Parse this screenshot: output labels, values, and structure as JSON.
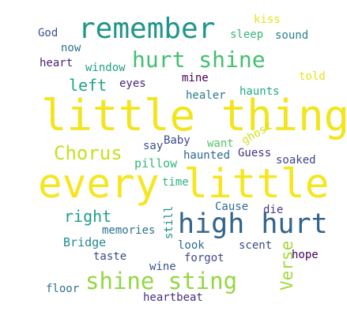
{
  "words": [
    {
      "text": "little thing",
      "color": "#f2e51d"
    },
    {
      "text": "every little",
      "color": "#f6e620"
    },
    {
      "text": "high hurt",
      "color": "#33638d"
    },
    {
      "text": "remember",
      "color": "#1f958b"
    },
    {
      "text": "shine sting",
      "color": "#93d741"
    },
    {
      "text": "hurt shine",
      "color": "#44bf70"
    },
    {
      "text": "Chorus",
      "color": "#c8e020"
    },
    {
      "text": "right",
      "color": "#1f9e89"
    },
    {
      "text": "left",
      "color": "#20a486"
    },
    {
      "text": "Verse",
      "color": "#a2da37"
    },
    {
      "text": "Bridge",
      "color": "#23888e"
    },
    {
      "text": "memories",
      "color": "#2c728e"
    },
    {
      "text": "pillow",
      "color": "#35b779"
    },
    {
      "text": "haunted",
      "color": "#31668e"
    },
    {
      "text": "heartbeat",
      "color": "#472f7d"
    },
    {
      "text": "forgot",
      "color": "#3e4a89"
    },
    {
      "text": "window",
      "color": "#1fa187"
    },
    {
      "text": "haunts",
      "color": "#22a884"
    },
    {
      "text": "healer",
      "color": "#2a788e"
    },
    {
      "text": "soaked",
      "color": "#414487"
    },
    {
      "text": "ghost",
      "color": "#d2e21b"
    },
    {
      "text": "Guess",
      "color": "#46307e"
    },
    {
      "text": "sound",
      "color": "#26818e"
    },
    {
      "text": "sleep",
      "color": "#35b779"
    },
    {
      "text": "kiss",
      "color": "#e5e419"
    },
    {
      "text": "God",
      "color": "#3b528b"
    },
    {
      "text": "now",
      "color": "#2c728e"
    },
    {
      "text": "heart",
      "color": "#482475"
    },
    {
      "text": "eyes",
      "color": "#482878"
    },
    {
      "text": "mine",
      "color": "#440154"
    },
    {
      "text": "told",
      "color": "#e3e418"
    },
    {
      "text": "Baby",
      "color": "#3e4a89"
    },
    {
      "text": "want",
      "color": "#54c568"
    },
    {
      "text": "say",
      "color": "#3b528b"
    },
    {
      "text": "time",
      "color": "#2fb47c"
    },
    {
      "text": "Cause",
      "color": "#31688e"
    },
    {
      "text": "die",
      "color": "#443983"
    },
    {
      "text": "still",
      "color": "#228c8d"
    },
    {
      "text": "look",
      "color": "#31688e"
    },
    {
      "text": "scent",
      "color": "#3e4989"
    },
    {
      "text": "hope",
      "color": "#440154"
    },
    {
      "text": "taste",
      "color": "#3e4989"
    },
    {
      "text": "wine",
      "color": "#3b528b"
    },
    {
      "text": "floor",
      "color": "#2d708e"
    }
  ]
}
